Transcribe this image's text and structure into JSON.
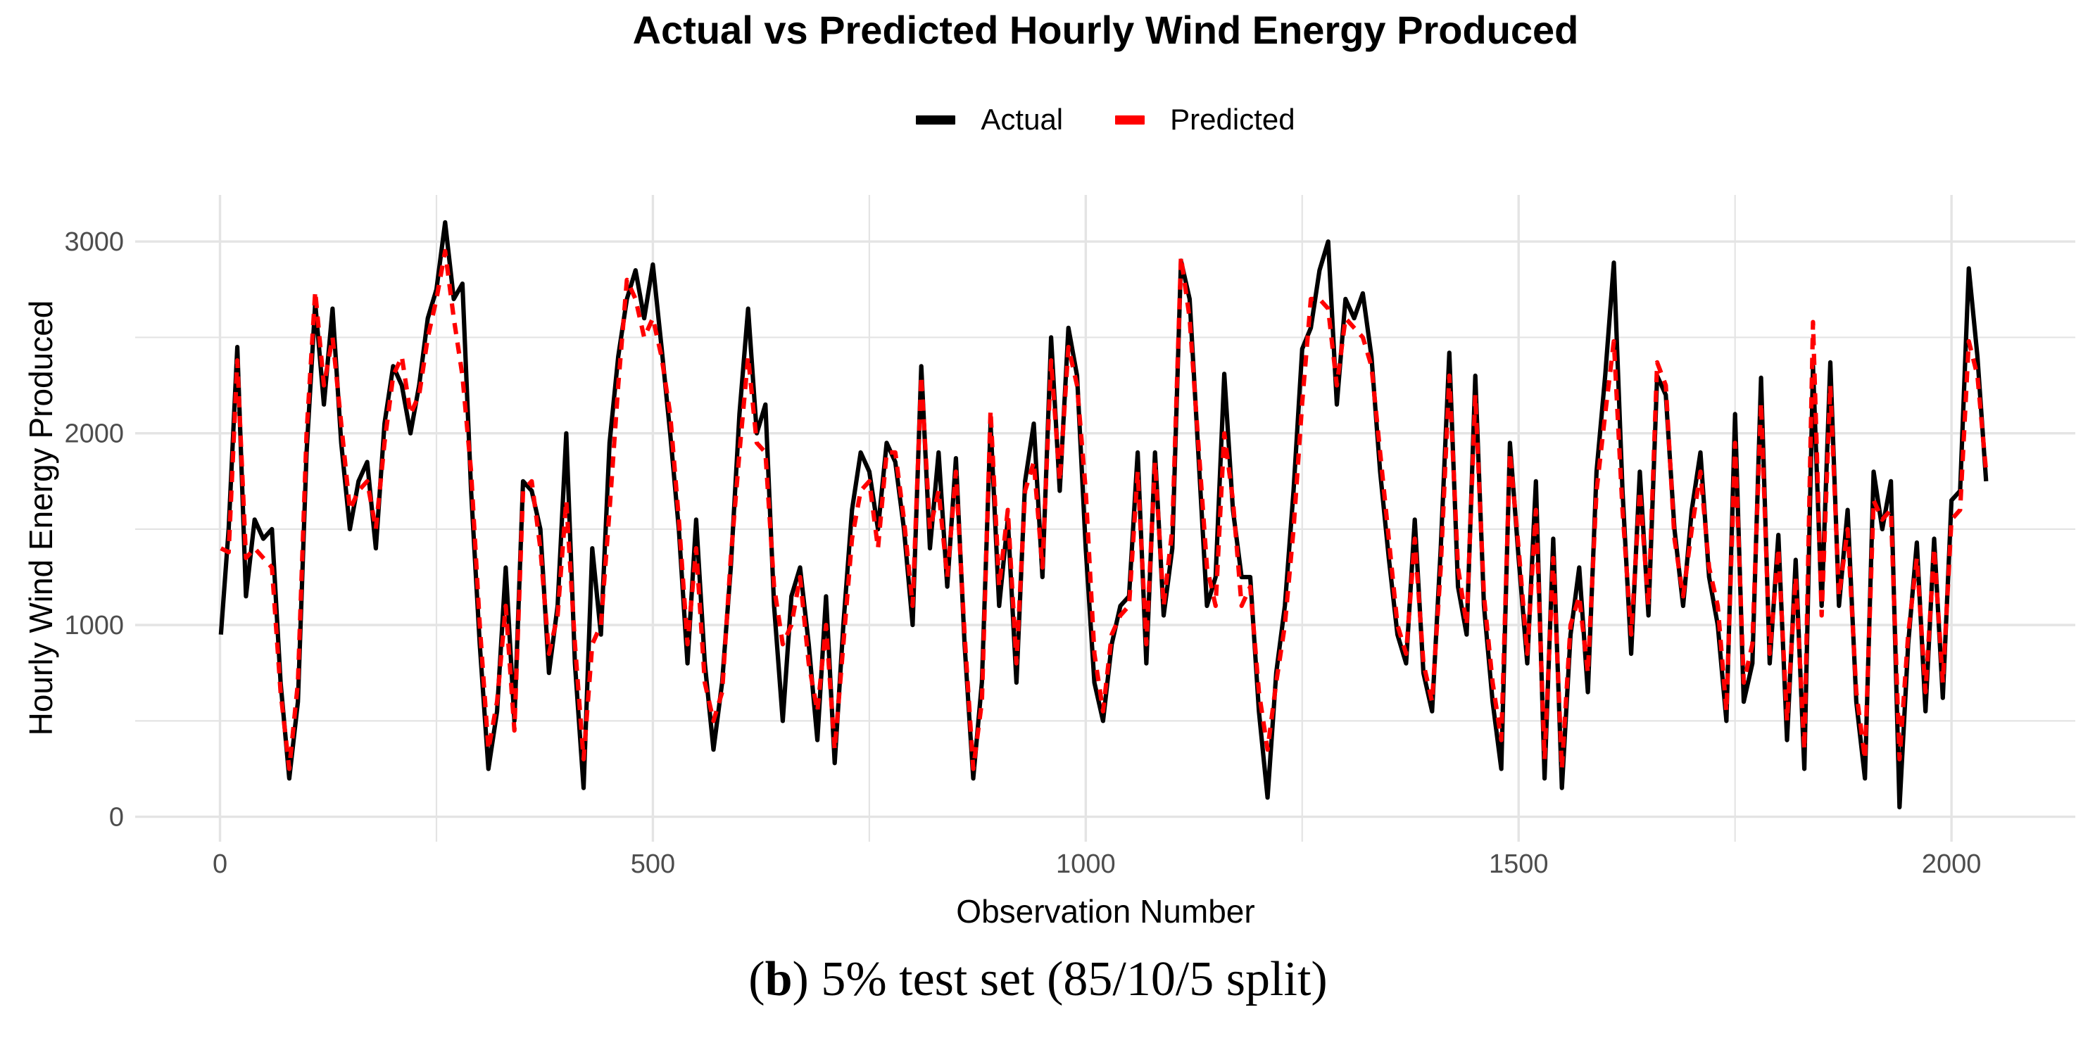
{
  "figure": {
    "caption": {
      "prefix": "(",
      "bold": "b",
      "rest": ") 5% test set (85/10/5 split)"
    }
  },
  "chart_data": {
    "type": "line",
    "title": "Actual vs Predicted Hourly Wind Energy Produced",
    "xlabel": "Observation Number",
    "ylabel": "Hourly Wind Energy Produced",
    "legend_position": "top",
    "grid": true,
    "background_color": "#FFFFFF",
    "grid_color": "#E4E4E4",
    "tick_label_color": "#4D4D4D",
    "xlim": [
      -98,
      2143
    ],
    "ylim": [
      -130,
      3243
    ],
    "x_ticks": [
      0,
      500,
      1000,
      1500,
      2000
    ],
    "x_minor_ticks": [
      250,
      750,
      1250,
      1750
    ],
    "y_ticks": [
      0,
      1000,
      2000,
      3000
    ],
    "y_minor_ticks": [
      500,
      1500,
      2500
    ],
    "x": [
      1,
      10,
      20,
      30,
      40,
      50,
      60,
      70,
      80,
      90,
      100,
      110,
      120,
      130,
      140,
      150,
      160,
      170,
      180,
      190,
      200,
      210,
      220,
      230,
      240,
      250,
      260,
      270,
      280,
      290,
      300,
      310,
      320,
      330,
      340,
      350,
      360,
      370,
      380,
      390,
      400,
      410,
      420,
      430,
      440,
      450,
      460,
      470,
      480,
      490,
      500,
      510,
      520,
      530,
      540,
      550,
      560,
      570,
      580,
      590,
      600,
      610,
      620,
      630,
      640,
      650,
      660,
      670,
      680,
      690,
      700,
      710,
      720,
      730,
      740,
      750,
      760,
      770,
      780,
      790,
      800,
      810,
      820,
      830,
      840,
      850,
      860,
      870,
      880,
      890,
      900,
      910,
      920,
      930,
      940,
      950,
      960,
      970,
      980,
      990,
      1000,
      1010,
      1020,
      1030,
      1040,
      1050,
      1060,
      1070,
      1080,
      1090,
      1100,
      1110,
      1120,
      1130,
      1140,
      1150,
      1160,
      1170,
      1180,
      1190,
      1200,
      1210,
      1220,
      1230,
      1240,
      1250,
      1260,
      1270,
      1280,
      1290,
      1300,
      1310,
      1320,
      1330,
      1340,
      1350,
      1360,
      1370,
      1380,
      1390,
      1400,
      1410,
      1420,
      1430,
      1440,
      1450,
      1460,
      1470,
      1480,
      1490,
      1500,
      1510,
      1520,
      1530,
      1540,
      1550,
      1560,
      1570,
      1580,
      1590,
      1600,
      1610,
      1620,
      1630,
      1640,
      1650,
      1660,
      1670,
      1680,
      1690,
      1700,
      1710,
      1720,
      1730,
      1740,
      1750,
      1760,
      1770,
      1780,
      1790,
      1800,
      1810,
      1820,
      1830,
      1840,
      1850,
      1860,
      1870,
      1880,
      1890,
      1900,
      1910,
      1920,
      1930,
      1940,
      1950,
      1960,
      1970,
      1980,
      1990,
      2000,
      2010,
      2020,
      2030,
      2040
    ],
    "series": [
      {
        "name": "Actual",
        "color": "#000000",
        "style": "solid",
        "values": [
          950,
          1500,
          2450,
          1150,
          1550,
          1450,
          1500,
          700,
          200,
          600,
          1900,
          2680,
          2150,
          2650,
          1950,
          1500,
          1750,
          1850,
          1400,
          2050,
          2350,
          2250,
          2000,
          2250,
          2600,
          2750,
          3100,
          2700,
          2780,
          1700,
          900,
          250,
          550,
          1300,
          500,
          1750,
          1700,
          1500,
          750,
          1100,
          2000,
          800,
          150,
          1400,
          950,
          1950,
          2400,
          2700,
          2850,
          2600,
          2880,
          2450,
          2000,
          1500,
          800,
          1550,
          800,
          350,
          700,
          1300,
          2100,
          2650,
          2000,
          2150,
          1100,
          500,
          1150,
          1300,
          900,
          400,
          1150,
          280,
          1000,
          1600,
          1900,
          1800,
          1500,
          1950,
          1850,
          1500,
          1000,
          2350,
          1400,
          1900,
          1200,
          1870,
          900,
          200,
          700,
          2050,
          1100,
          1550,
          700,
          1750,
          2050,
          1250,
          2500,
          1700,
          2550,
          2300,
          1400,
          700,
          500,
          900,
          1100,
          1150,
          1900,
          800,
          1900,
          1050,
          1400,
          2900,
          2700,
          1900,
          1100,
          1250,
          2310,
          1600,
          1250,
          1250,
          550,
          100,
          750,
          1100,
          1700,
          2440,
          2550,
          2850,
          3000,
          2150,
          2700,
          2600,
          2730,
          2400,
          1800,
          1350,
          950,
          800,
          1550,
          750,
          550,
          1400,
          2420,
          1200,
          950,
          2300,
          1100,
          600,
          250,
          1950,
          1350,
          800,
          1750,
          200,
          1450,
          150,
          950,
          1300,
          650,
          1800,
          2300,
          2890,
          1700,
          850,
          1800,
          1050,
          2300,
          2200,
          1500,
          1100,
          1600,
          1900,
          1250,
          1000,
          500,
          2100,
          600,
          800,
          2290,
          800,
          1470,
          400,
          1340,
          250,
          2350,
          1100,
          2370,
          1100,
          1600,
          600,
          200,
          1800,
          1500,
          1750,
          50,
          900,
          1430,
          550,
          1450,
          620,
          1650,
          1700,
          2860,
          2400,
          1750
        ]
      },
      {
        "name": "Predicted",
        "color": "#FF0000",
        "style": "dashed",
        "values": [
          1400,
          1380,
          2380,
          1350,
          1400,
          1350,
          1300,
          650,
          250,
          700,
          2000,
          2740,
          2250,
          2500,
          2050,
          1600,
          1700,
          1750,
          1500,
          1950,
          2300,
          2400,
          2100,
          2200,
          2500,
          2700,
          2950,
          2600,
          2300,
          1800,
          1000,
          350,
          600,
          1100,
          450,
          1700,
          1750,
          1400,
          850,
          1050,
          1650,
          900,
          300,
          900,
          1000,
          1600,
          2250,
          2800,
          2700,
          2500,
          2600,
          2400,
          2100,
          1550,
          900,
          1400,
          700,
          500,
          650,
          1350,
          1900,
          2400,
          1950,
          1900,
          1200,
          900,
          1000,
          1250,
          800,
          550,
          1000,
          350,
          900,
          1450,
          1700,
          1750,
          1400,
          1900,
          1900,
          1550,
          1100,
          2300,
          1500,
          1700,
          1250,
          1800,
          950,
          250,
          600,
          2120,
          1200,
          1600,
          800,
          1700,
          1850,
          1300,
          2380,
          1750,
          2450,
          2250,
          1700,
          850,
          550,
          950,
          1050,
          1100,
          1800,
          900,
          1850,
          1100,
          1500,
          2920,
          2600,
          1950,
          1300,
          1100,
          2000,
          1650,
          1100,
          1200,
          650,
          350,
          700,
          1000,
          1500,
          2160,
          2700,
          2700,
          2650,
          2250,
          2600,
          2550,
          2500,
          2350,
          1900,
          1450,
          1000,
          850,
          1450,
          800,
          600,
          1300,
          2300,
          1300,
          1000,
          2200,
          1150,
          700,
          400,
          1900,
          1400,
          850,
          1600,
          300,
          1350,
          250,
          1000,
          1150,
          750,
          1700,
          2100,
          2480,
          1600,
          950,
          1700,
          1100,
          2370,
          2250,
          1450,
          1150,
          1500,
          1800,
          1300,
          1100,
          550,
          1950,
          700,
          900,
          2160,
          850,
          1400,
          500,
          1250,
          350,
          2580,
          1050,
          2250,
          1150,
          1500,
          650,
          300,
          1650,
          1550,
          1600,
          300,
          950,
          1350,
          650,
          1400,
          700,
          1550,
          1600,
          2480,
          2300,
          1800
        ]
      }
    ]
  }
}
